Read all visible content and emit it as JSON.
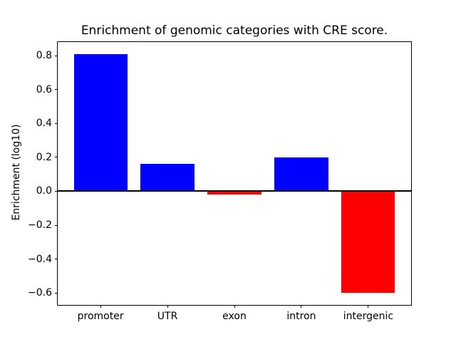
{
  "title": "Enrichment of genomic categories with CRE score.",
  "chart_data": {
    "type": "bar",
    "title": "Enrichment of genomic categories with CRE score.",
    "xlabel": "",
    "ylabel": "Enrichment (log10)",
    "categories": [
      "promoter",
      "UTR",
      "exon",
      "intron",
      "intergenic"
    ],
    "values": [
      0.81,
      0.16,
      -0.02,
      0.2,
      -0.6
    ],
    "bar_colors": [
      "#0000ff",
      "#0000ff",
      "#ff0000",
      "#0000ff",
      "#ff0000"
    ],
    "positive_color": "#0000ff",
    "negative_color": "#ff0000",
    "yticks": [
      0.8,
      0.6,
      0.4,
      0.2,
      0.0,
      -0.2,
      -0.4,
      -0.6
    ],
    "ylim": [
      -0.67,
      0.88
    ],
    "bar_width_frac": 0.8,
    "grid": false,
    "zero_line": true,
    "legend": null,
    "frame": "full-box"
  }
}
